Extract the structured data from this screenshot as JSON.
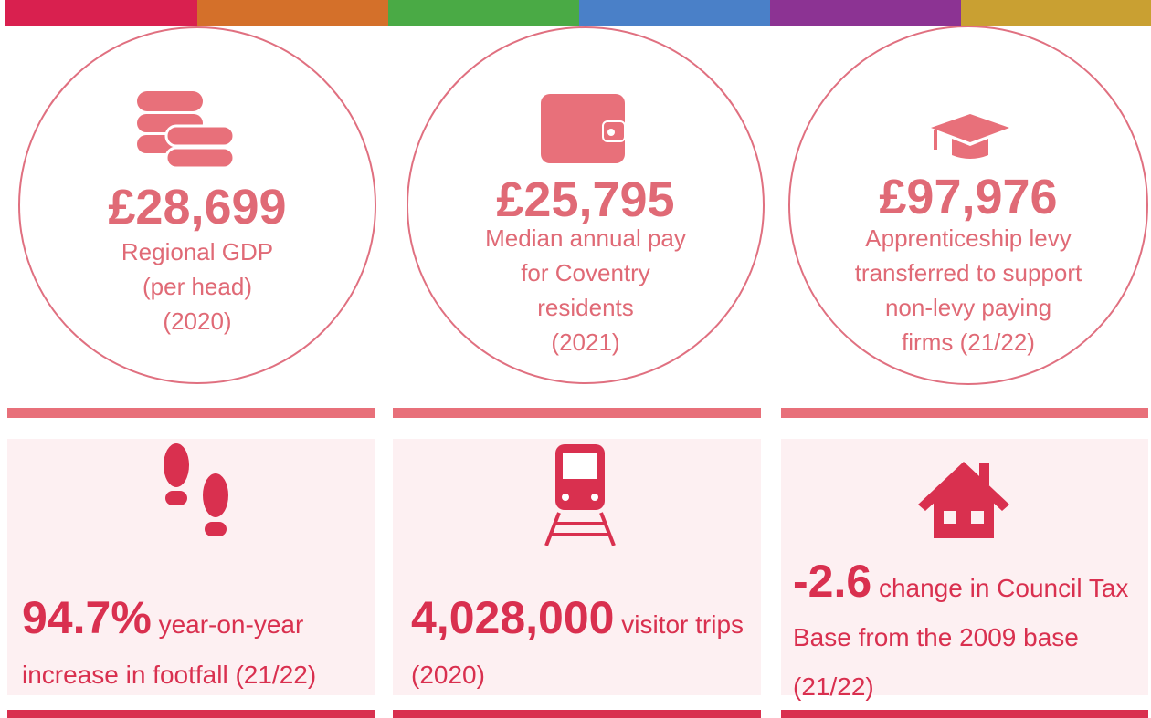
{
  "stats": [
    {
      "value": "£28,699",
      "label_lines": [
        "Regional GDP",
        "(per head)",
        "(2020)"
      ]
    },
    {
      "value": "£25,795",
      "label_lines": [
        "Median annual pay",
        "for Coventry",
        "residents",
        "(2021)"
      ]
    },
    {
      "value": "£97,976",
      "label_lines": [
        "Apprenticeship levy",
        "transferred to support",
        "non-levy paying",
        "firms (21/22)"
      ]
    }
  ],
  "cards": [
    {
      "value": "94.7%",
      "text": "year-on-year increase in footfall (21/22)"
    },
    {
      "value": "4,028,000",
      "text": "visitor trips (2020)"
    },
    {
      "value": "-2.6",
      "text": "change in Council Tax Base from the 2009 base (21/22)"
    }
  ]
}
